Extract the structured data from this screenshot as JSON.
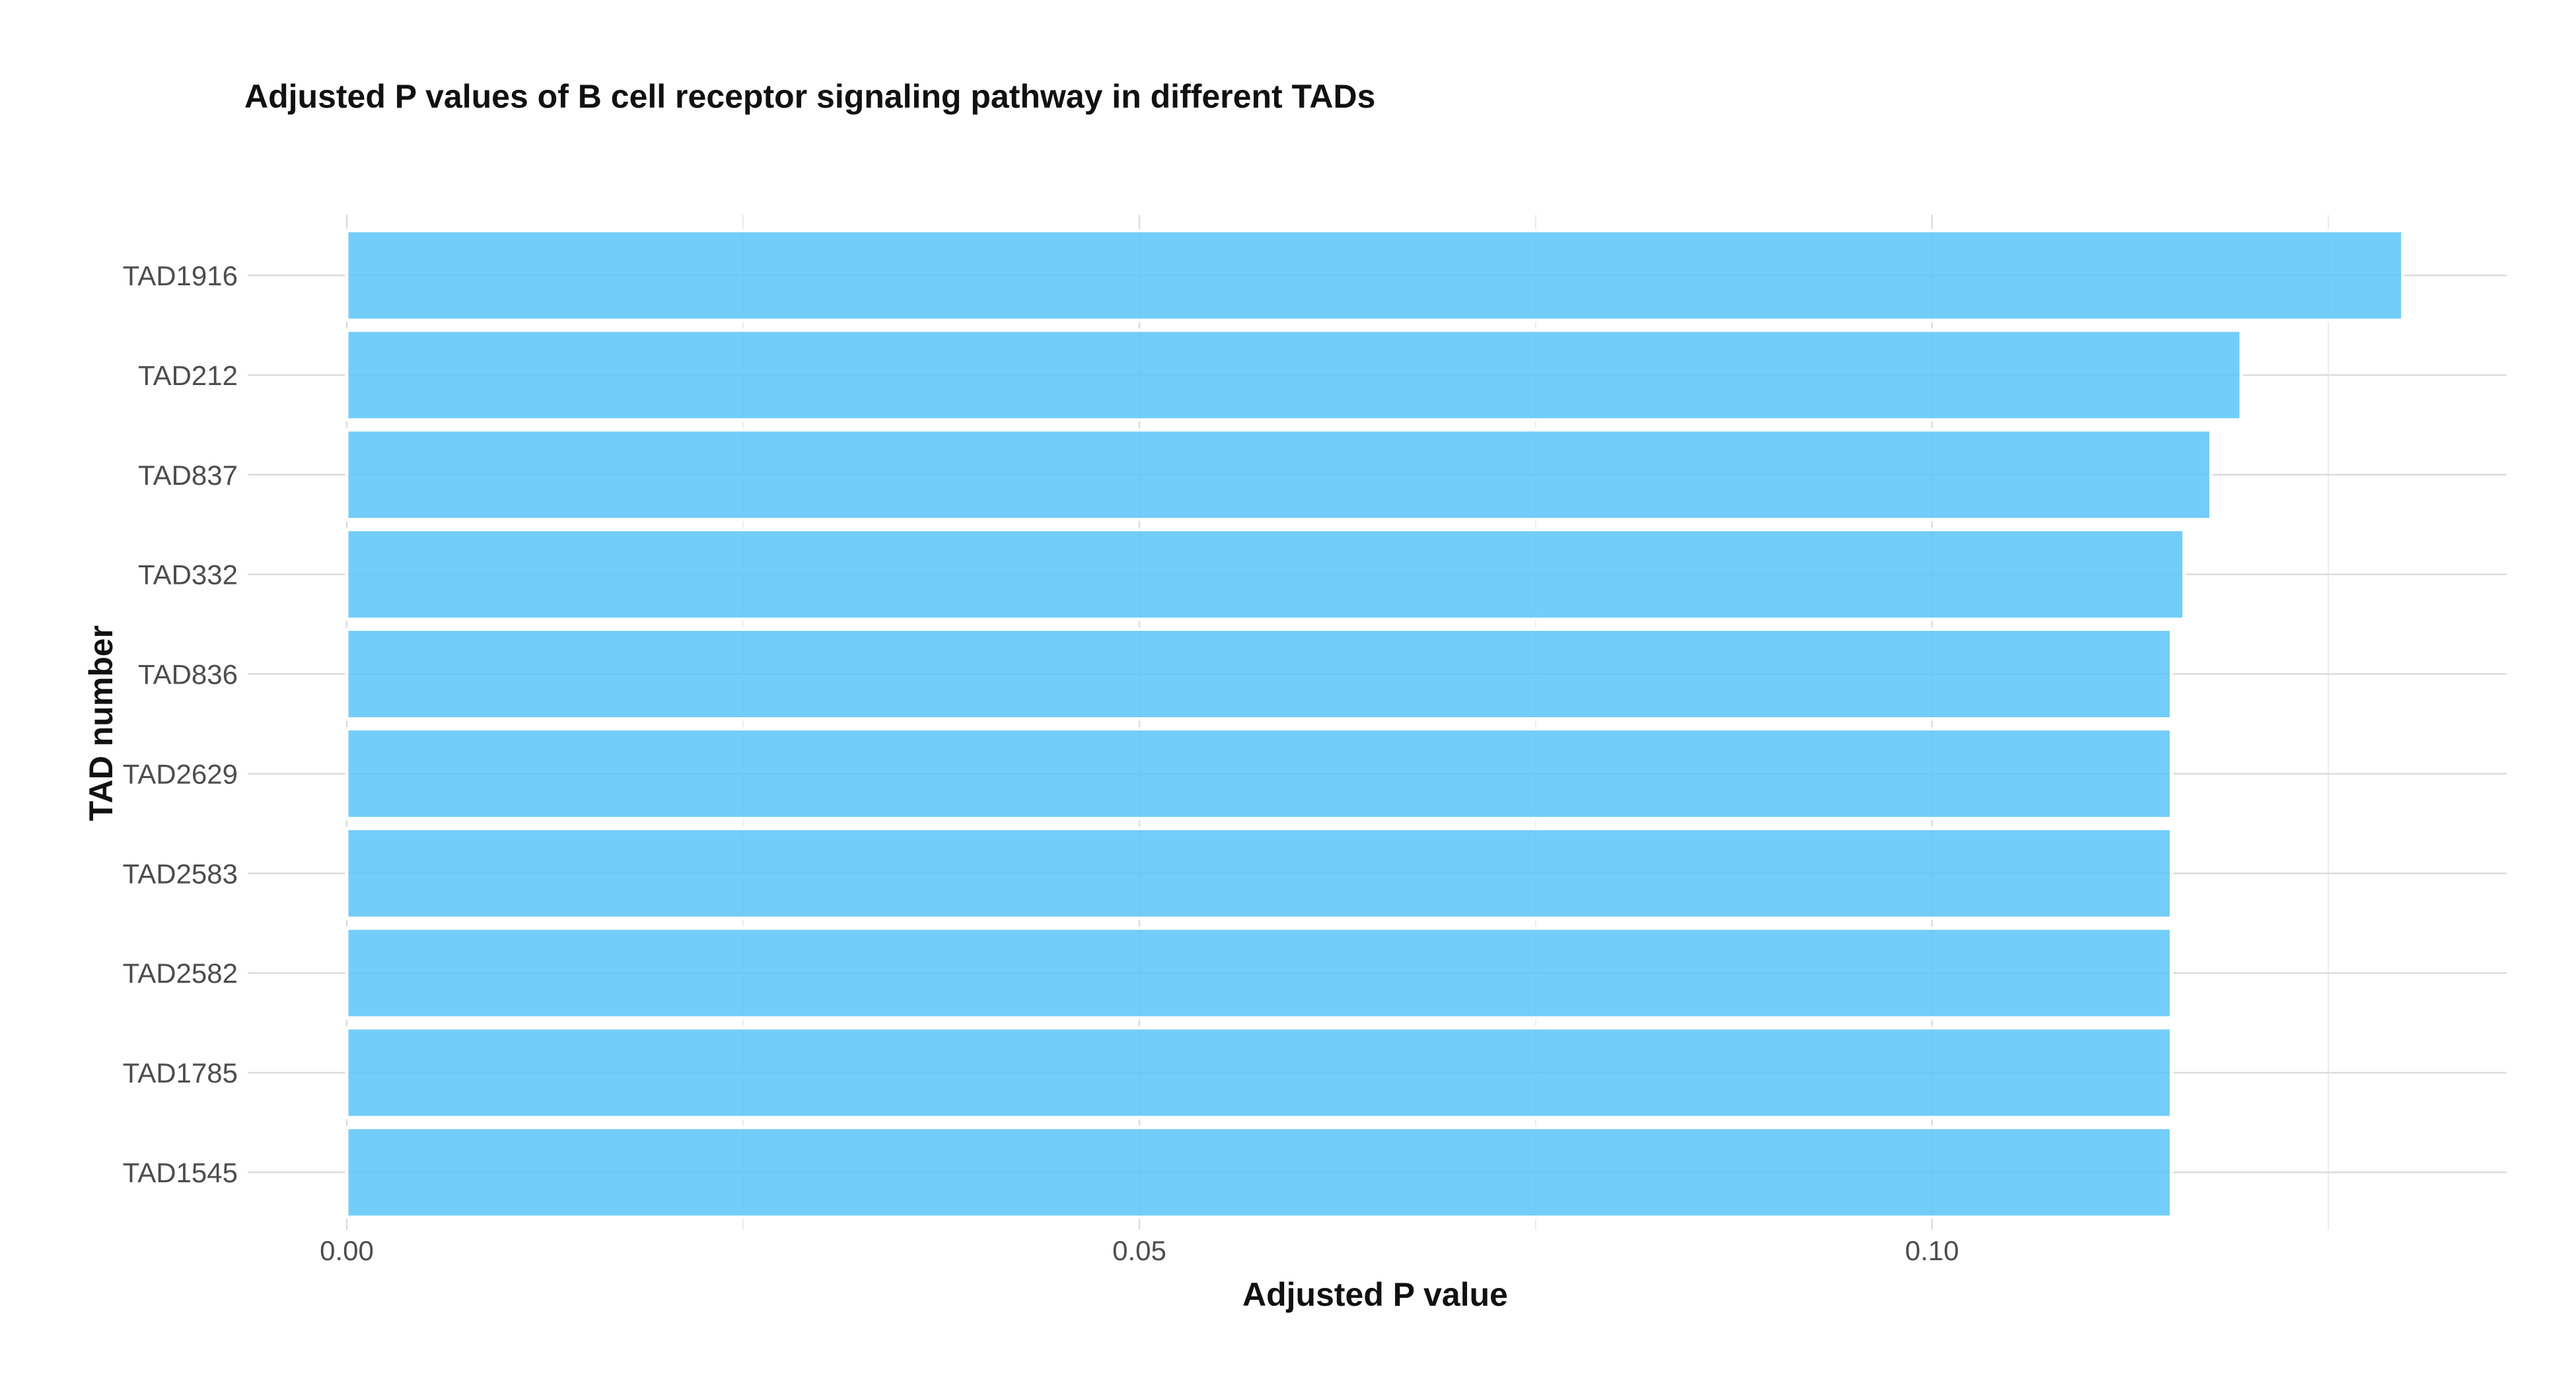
{
  "chart_data": {
    "type": "bar",
    "orientation": "horizontal",
    "title": "Adjusted P values of B cell receptor signaling pathway in different TADs",
    "xlabel": "Adjusted P value",
    "ylabel": "TAD number",
    "categories": [
      "TAD1916",
      "TAD212",
      "TAD837",
      "TAD332",
      "TAD836",
      "TAD2629",
      "TAD2583",
      "TAD2582",
      "TAD1785",
      "TAD1545"
    ],
    "values": [
      0.1297,
      0.1195,
      0.1176,
      0.1159,
      0.1151,
      0.1151,
      0.1151,
      0.1151,
      0.1151,
      0.1151
    ],
    "xlim": [
      0,
      0.136
    ],
    "xticks": [
      0.0,
      0.05,
      0.1
    ],
    "xtick_labels": [
      "0.00",
      "0.05",
      "0.10"
    ],
    "grid": true,
    "legend": "none",
    "bar_color": "#5bc4f8"
  }
}
